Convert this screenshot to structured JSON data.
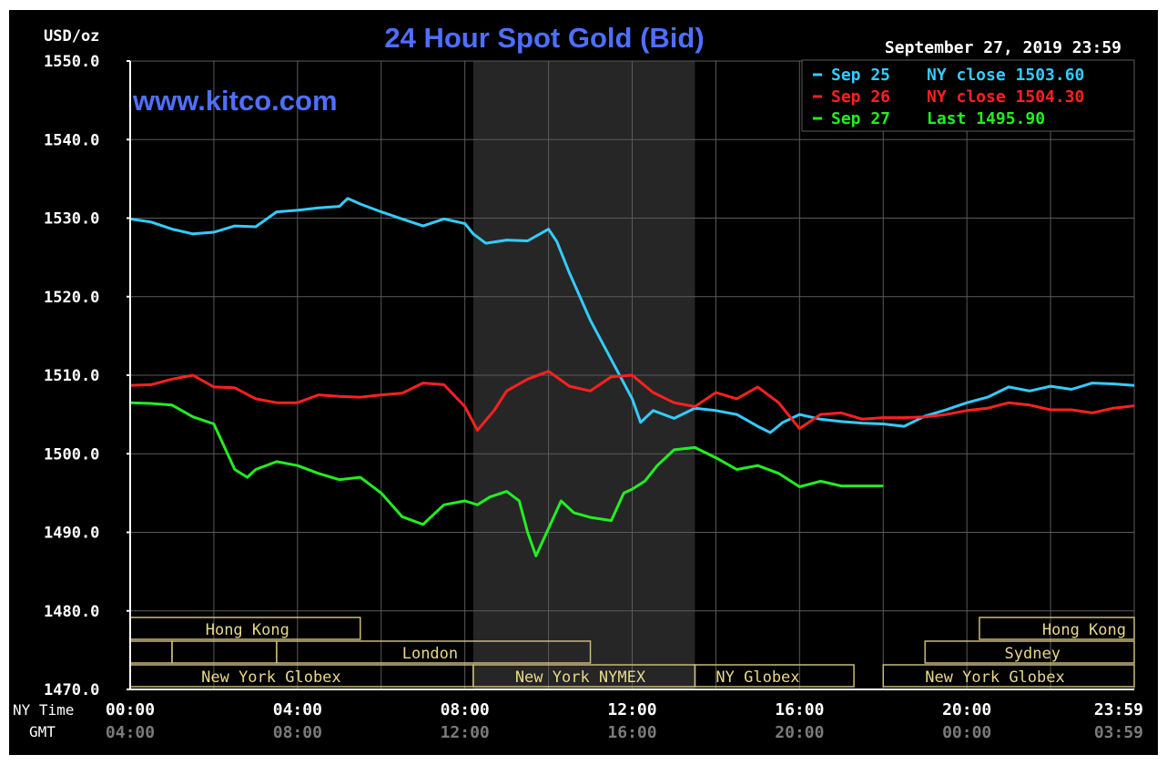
{
  "chart_data": {
    "type": "line",
    "title": "24 Hour Spot Gold (Bid)",
    "site": "www.kitco.com",
    "date_label": "September 27, 2019 23:59",
    "ylabel": "USD/oz",
    "ylim": [
      1470,
      1550
    ],
    "xlim": [
      0,
      24
    ],
    "y_ticks": [
      "1550.0",
      "1540.0",
      "1530.0",
      "1520.0",
      "1510.0",
      "1500.0",
      "1490.0",
      "1480.0",
      "1470.0"
    ],
    "x_row_labels": {
      "ny": "NY Time",
      "gmt": "GMT"
    },
    "x_ticks_ny": [
      "00:00",
      "04:00",
      "08:00",
      "12:00",
      "16:00",
      "20:00",
      "23:59"
    ],
    "x_ticks_gmt": [
      "04:00",
      "08:00",
      "12:00",
      "16:00",
      "20:00",
      "00:00",
      "03:59"
    ],
    "nymex_hours": [
      8.2,
      13.5
    ],
    "grid": true,
    "legend_position": "top-right",
    "series": [
      {
        "name": "Sep 25 NY close 1503.60",
        "legend_date": "Sep 25",
        "legend_text": "NY close 1503.60",
        "color": "#33ccff",
        "x": [
          0,
          0.5,
          1,
          1.5,
          2,
          2.5,
          3,
          3.5,
          4,
          4.5,
          5,
          5.2,
          5.5,
          6,
          6.5,
          7,
          7.5,
          8,
          8.2,
          8.5,
          9,
          9.5,
          10,
          10.2,
          10.5,
          11,
          11.5,
          12,
          12.2,
          12.5,
          13,
          13.5,
          14,
          14.5,
          15,
          15.3,
          15.6,
          16,
          16.5,
          17,
          17.5,
          18,
          18.5,
          19,
          19.5,
          20,
          20.5,
          21,
          21.5,
          22,
          22.5,
          23,
          23.5,
          24
        ],
        "y": [
          1529.9,
          1529.5,
          1528.6,
          1528.0,
          1528.2,
          1529.0,
          1528.9,
          1530.8,
          1531.0,
          1531.3,
          1531.5,
          1532.5,
          1531.8,
          1530.8,
          1529.9,
          1529.0,
          1529.9,
          1529.3,
          1528.0,
          1526.8,
          1527.2,
          1527.1,
          1528.6,
          1527.0,
          1523.0,
          1517.0,
          1512.0,
          1507.0,
          1504.0,
          1505.5,
          1504.5,
          1505.8,
          1505.5,
          1505.0,
          1503.5,
          1502.7,
          1504.0,
          1505.0,
          1504.4,
          1504.1,
          1503.9,
          1503.8,
          1503.5,
          1504.8,
          1505.6,
          1506.5,
          1507.2,
          1508.5,
          1508.0,
          1508.6,
          1508.2,
          1509.0,
          1508.9,
          1508.7
        ]
      },
      {
        "name": "Sep 26 NY close 1504.30",
        "legend_date": "Sep 26",
        "legend_text": "NY close 1504.30",
        "color": "#ff2020",
        "x": [
          0,
          0.5,
          1,
          1.5,
          2,
          2.5,
          3,
          3.5,
          4,
          4.5,
          5,
          5.5,
          6,
          6.5,
          7,
          7.5,
          8,
          8.3,
          8.7,
          9,
          9.5,
          10,
          10.5,
          11,
          11.5,
          12,
          12.5,
          13,
          13.5,
          14,
          14.5,
          15,
          15.5,
          16,
          16.5,
          17,
          17.5,
          18,
          18.5,
          19,
          19.5,
          20,
          20.5,
          21,
          21.5,
          22,
          22.5,
          23,
          23.5,
          24
        ],
        "y": [
          1508.7,
          1508.8,
          1509.5,
          1510.0,
          1508.5,
          1508.4,
          1507.0,
          1506.5,
          1506.5,
          1507.5,
          1507.3,
          1507.2,
          1507.5,
          1507.7,
          1509.0,
          1508.8,
          1506.0,
          1503.0,
          1505.5,
          1508.0,
          1509.5,
          1510.5,
          1508.6,
          1508.0,
          1509.8,
          1510.0,
          1507.8,
          1506.5,
          1506.0,
          1507.8,
          1507.0,
          1508.5,
          1506.5,
          1503.2,
          1505.0,
          1505.2,
          1504.4,
          1504.6,
          1504.6,
          1504.7,
          1505.0,
          1505.5,
          1505.8,
          1506.5,
          1506.2,
          1505.6,
          1505.6,
          1505.2,
          1505.8,
          1506.1
        ]
      },
      {
        "name": "Sep 27 Last 1495.90",
        "legend_date": "Sep 27",
        "legend_text": "Last 1495.90",
        "color": "#22ee22",
        "x": [
          0,
          0.5,
          1,
          1.5,
          2,
          2.5,
          2.8,
          3,
          3.5,
          4,
          4.5,
          5,
          5.5,
          6,
          6.5,
          7,
          7.5,
          8,
          8.3,
          8.6,
          9,
          9.3,
          9.5,
          9.7,
          10,
          10.3,
          10.6,
          11,
          11.5,
          11.8,
          12,
          12.3,
          12.6,
          13,
          13.5,
          14,
          14.5,
          15,
          15.5,
          16,
          16.5,
          17,
          17.5,
          18
        ],
        "y": [
          1506.5,
          1506.4,
          1506.2,
          1504.7,
          1503.8,
          1498.0,
          1497.0,
          1498.0,
          1499.0,
          1498.5,
          1497.5,
          1496.7,
          1497.0,
          1495.0,
          1492.0,
          1491.0,
          1493.5,
          1494.0,
          1493.5,
          1494.5,
          1495.2,
          1494.0,
          1490.0,
          1487.0,
          1490.5,
          1494.0,
          1492.5,
          1491.9,
          1491.5,
          1495.0,
          1495.5,
          1496.5,
          1498.5,
          1500.5,
          1500.8,
          1499.5,
          1498.0,
          1498.5,
          1497.5,
          1495.8,
          1496.5,
          1495.9,
          1495.9,
          1495.9
        ]
      }
    ],
    "session_bars": [
      {
        "label": "Hong Kong",
        "row": 0,
        "start": 0,
        "end": 5.5,
        "label_at": 1.8
      },
      {
        "label": "Hong Kong",
        "row": 0,
        "start": 20.3,
        "end": 24,
        "label_at": 21.8
      },
      {
        "label": "",
        "row": 1,
        "start": 0,
        "end": 1,
        "label_at": 0.5
      },
      {
        "label": "",
        "row": 1,
        "start": 1,
        "end": 3.5,
        "label_at": 2.2
      },
      {
        "label": "London",
        "row": 1,
        "start": 3.5,
        "end": 11,
        "label_at": 6.5
      },
      {
        "label": "Sydney",
        "row": 1,
        "start": 19.0,
        "end": 24,
        "label_at": 20.9
      },
      {
        "label": "New York Globex",
        "row": 2,
        "start": 0,
        "end": 8.2,
        "label_at": 1.7
      },
      {
        "label": "New York NYMEX",
        "row": 2,
        "start": 8.2,
        "end": 13.5,
        "label_at": 9.2
      },
      {
        "label": "NY Globex",
        "row": 2,
        "start": 13.5,
        "end": 17.3,
        "label_at": 14.0
      },
      {
        "label": "New York Globex",
        "row": 2,
        "start": 18.0,
        "end": 24,
        "label_at": 19.0
      }
    ]
  }
}
